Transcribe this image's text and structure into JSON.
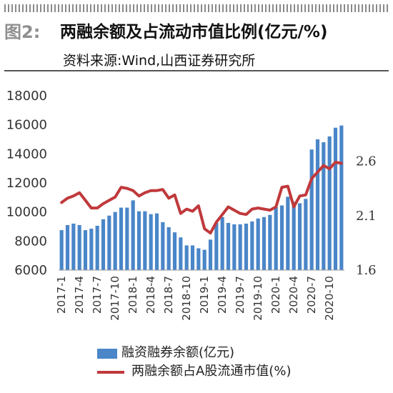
{
  "header": {
    "figure_label": "图2:",
    "title": "两融余额及占流动市值比例(亿元/%)",
    "source": "资料来源:Wind,山西证券研究所"
  },
  "colors": {
    "bars": "#4a86c8",
    "line": "#c0393b"
  },
  "chart_data": {
    "type": "bar",
    "categories": [
      "2017-1",
      "2017-2",
      "2017-3",
      "2017-4",
      "2017-5",
      "2017-6",
      "2017-7",
      "2017-8",
      "2017-9",
      "2017-10",
      "2017-11",
      "2017-12",
      "2018-1",
      "2018-2",
      "2018-3",
      "2018-4",
      "2018-5",
      "2018-6",
      "2018-7",
      "2018-8",
      "2018-9",
      "2018-10",
      "2018-11",
      "2018-12",
      "2019-1",
      "2019-2",
      "2019-3",
      "2019-4",
      "2019-5",
      "2019-6",
      "2019-7",
      "2019-8",
      "2019-9",
      "2019-10",
      "2019-11",
      "2019-12",
      "2020-1",
      "2020-2",
      "2020-3",
      "2020-4",
      "2020-5",
      "2020-6",
      "2020-7",
      "2020-8",
      "2020-9",
      "2020-10",
      "2020-11",
      "2020-12"
    ],
    "x_tick_labels": [
      "2017-1",
      "2017-4",
      "2017-7",
      "2017-10",
      "2018-1",
      "2018-4",
      "2018-7",
      "2018-10",
      "2019-1",
      "2019-4",
      "2019-7",
      "2019-10",
      "2020-1",
      "2020-4",
      "2020-7",
      "2020-10"
    ],
    "series": [
      {
        "name": "融资融券余额(亿元)",
        "type": "bar",
        "axis": "left",
        "values": [
          8750,
          9100,
          9200,
          9100,
          8750,
          8850,
          9050,
          9500,
          9750,
          10000,
          10300,
          10300,
          10800,
          10050,
          10050,
          9850,
          9900,
          9300,
          8950,
          8600,
          8250,
          7700,
          7700,
          7500,
          7400,
          8100,
          9250,
          9650,
          9250,
          9150,
          9150,
          9200,
          9350,
          9550,
          9650,
          9800,
          10350,
          10450,
          11050,
          10700,
          10600,
          10900,
          14300,
          15000,
          14800,
          15200,
          15800,
          15950
        ]
      },
      {
        "name": "两融余额占A股流通市值(%)",
        "type": "line",
        "axis": "right",
        "values": [
          2.22,
          2.26,
          2.28,
          2.31,
          2.24,
          2.17,
          2.17,
          2.21,
          2.24,
          2.27,
          2.36,
          2.35,
          2.33,
          2.28,
          2.31,
          2.33,
          2.33,
          2.34,
          2.26,
          2.29,
          2.12,
          2.16,
          2.14,
          2.19,
          1.98,
          1.94,
          2.04,
          2.11,
          2.18,
          2.15,
          2.12,
          2.11,
          2.16,
          2.17,
          2.16,
          2.15,
          2.18,
          2.36,
          2.37,
          2.18,
          2.28,
          2.29,
          2.44,
          2.5,
          2.56,
          2.53,
          2.59,
          2.58
        ]
      }
    ],
    "y_left": {
      "ticks": [
        "6000",
        "8000",
        "10000",
        "12000",
        "14000",
        "16000",
        "18000"
      ],
      "ylim": [
        6000,
        18000
      ]
    },
    "y_right": {
      "ticks": [
        "1.6",
        "2.1",
        "2.6"
      ],
      "ylim": [
        1.6,
        3.2
      ]
    },
    "grid": false,
    "legend_position": "bottom"
  }
}
